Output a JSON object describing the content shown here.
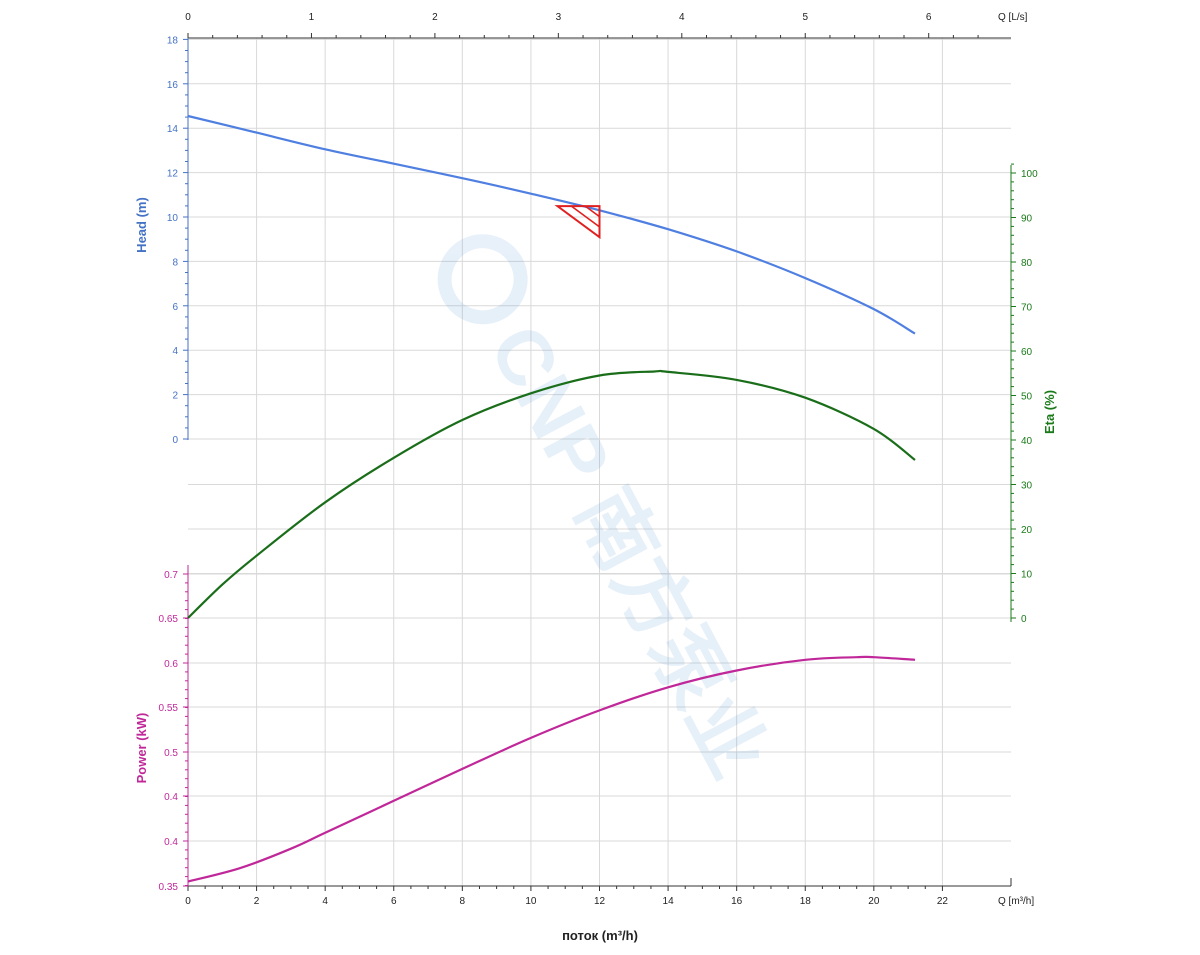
{
  "chart_data": {
    "type": "line",
    "watermark_text": "CNP 南方泵业",
    "x_bottom": {
      "label": "поток (m³/h)",
      "unit": "Q [m³/h]",
      "range": [
        0,
        24
      ],
      "ticks": [
        "0",
        "2",
        "4",
        "6",
        "8",
        "10",
        "12",
        "14",
        "16",
        "18",
        "20",
        "22"
      ]
    },
    "x_top": {
      "unit": "Q [L/s]",
      "range": [
        0,
        6.6667
      ],
      "ticks": [
        "0",
        "1",
        "2",
        "3",
        "4",
        "5",
        "6"
      ]
    },
    "head_axis": {
      "label": "Head (m)",
      "color": "#4472c4",
      "range": [
        0,
        18
      ],
      "ticks": [
        "0",
        "2",
        "4",
        "6",
        "8",
        "10",
        "12",
        "14",
        "16",
        "18"
      ]
    },
    "eta_axis": {
      "label": "Eta (%)",
      "color": "#1a7a1a",
      "range": [
        0,
        100
      ],
      "ticks": [
        "0",
        "10",
        "20",
        "30",
        "40",
        "50",
        "60",
        "70",
        "80",
        "90",
        "100"
      ]
    },
    "power_axis": {
      "label": "Power (kW)",
      "color": "#c0289a",
      "ticks": [
        "0.35",
        "0.4",
        "0.4",
        "0.5",
        "0.55",
        "0.6",
        "0.65",
        "0.7"
      ]
    },
    "series": [
      {
        "name": "Head (m)",
        "axis": "head",
        "color": "#4f7fe0",
        "x": [
          0,
          2,
          4,
          6,
          8,
          10,
          12,
          14,
          16,
          18,
          20,
          21.2
        ],
        "y": [
          14.55,
          13.8,
          13.05,
          12.4,
          11.75,
          11.05,
          10.3,
          9.45,
          8.45,
          7.25,
          5.85,
          4.75
        ]
      },
      {
        "name": "Eta (%)",
        "axis": "eta",
        "color": "#1a6e1a",
        "x": [
          0,
          1,
          2,
          4,
          6,
          8,
          10,
          12,
          13.6,
          14,
          16,
          18,
          20,
          21.2
        ],
        "y": [
          0,
          7.5,
          14,
          26,
          36,
          44.5,
          50.5,
          54.5,
          55.4,
          55.3,
          53.5,
          49.5,
          42.5,
          35.5
        ]
      },
      {
        "name": "Power (kW)",
        "axis": "power",
        "color": "#c0289a",
        "x": [
          0,
          1.5,
          3,
          4,
          6,
          8,
          10,
          12,
          14,
          16,
          18,
          19.5,
          20,
          21.2
        ],
        "y": [
          0.355,
          0.37,
          0.392,
          0.41,
          0.446,
          0.482,
          0.517,
          0.548,
          0.574,
          0.593,
          0.605,
          0.608,
          0.608,
          0.605
        ]
      }
    ],
    "duty_point": {
      "x": 12,
      "head": 10.4,
      "color": "#e02020"
    },
    "grid": true
  }
}
